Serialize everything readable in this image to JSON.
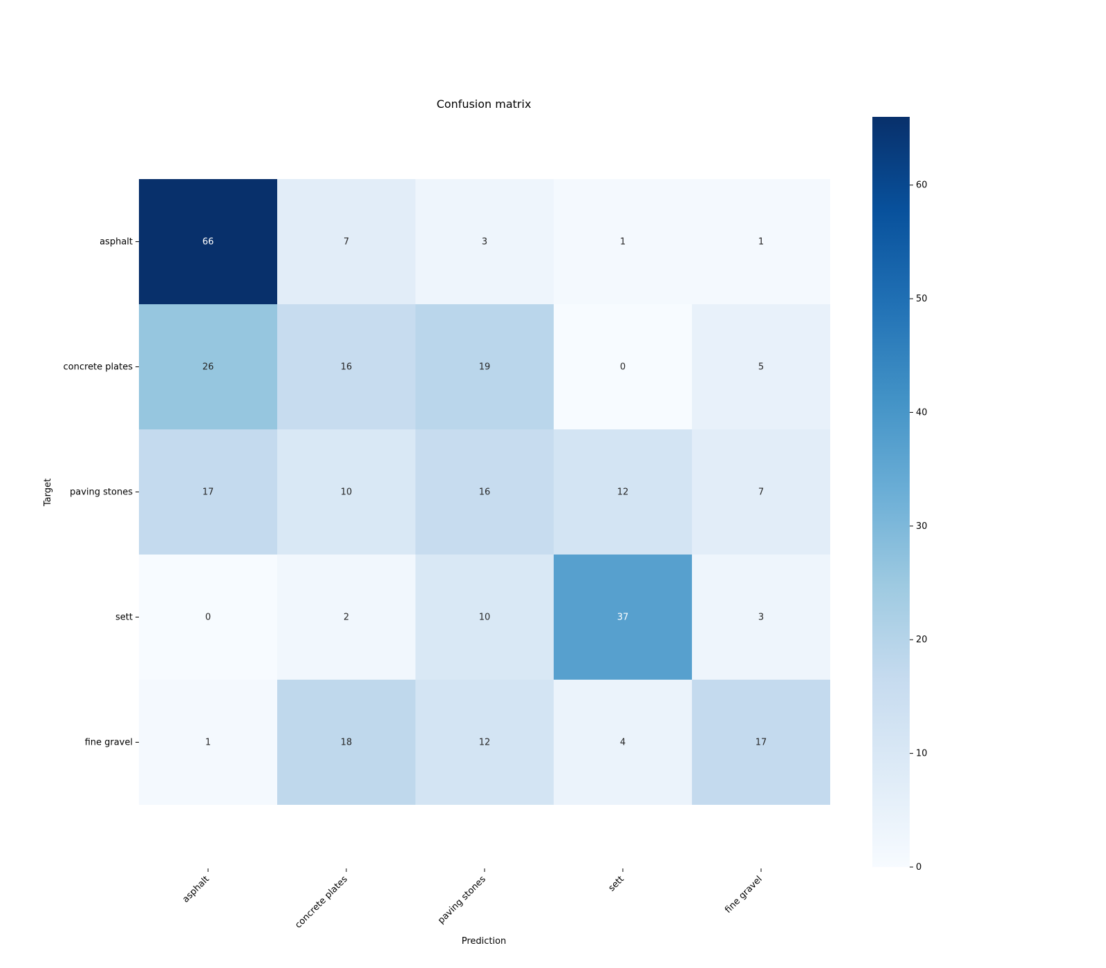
{
  "chart_data": {
    "type": "heatmap",
    "title": "Confusion matrix",
    "xlabel": "Prediction",
    "ylabel": "Target",
    "x_categories": [
      "asphalt",
      "concrete plates",
      "paving stones",
      "sett",
      "fine gravel"
    ],
    "y_categories": [
      "asphalt",
      "concrete plates",
      "paving stones",
      "sett",
      "fine gravel"
    ],
    "values": [
      [
        66,
        7,
        3,
        1,
        1
      ],
      [
        26,
        16,
        19,
        0,
        5
      ],
      [
        17,
        10,
        16,
        12,
        7
      ],
      [
        0,
        2,
        10,
        37,
        3
      ],
      [
        1,
        18,
        12,
        4,
        17
      ]
    ],
    "colormap": "Blues",
    "color_range": [
      0,
      66
    ],
    "colorbar_ticks": [
      0,
      10,
      20,
      30,
      40,
      50,
      60
    ]
  }
}
